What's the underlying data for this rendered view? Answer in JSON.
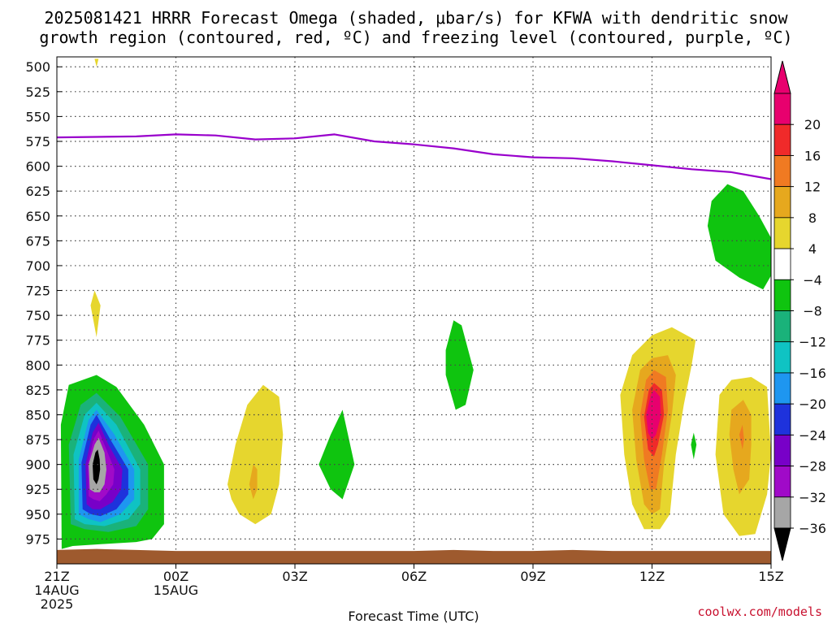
{
  "title": {
    "line1": "2025081421 HRRR Forecast Omega (shaded, μbar/s) for KFWA with dendritic snow",
    "line2": "growth region (contoured, red, ºC) and freezing level (contoured, purple, ºC)"
  },
  "credit": "coolwx.com/models",
  "chart_data": {
    "type": "heatmap",
    "title": "2025081421 HRRR Forecast Omega (shaded, μbar/s) for KFWA with dendritic snow growth region (contoured, red, ºC) and freezing level (contoured, purple, ºC)",
    "xlabel": "Forecast Time (UTC)",
    "ylabel": "",
    "x_range_hours": [
      0,
      18
    ],
    "y_range_hPa": [
      490,
      1000
    ],
    "y_ticks": [
      500,
      525,
      550,
      575,
      600,
      625,
      650,
      675,
      700,
      725,
      750,
      775,
      800,
      825,
      850,
      875,
      900,
      925,
      950,
      975
    ],
    "x_ticks": [
      {
        "h": 0,
        "lines": [
          "21Z",
          "14AUG",
          "2025"
        ]
      },
      {
        "h": 3,
        "lines": [
          "00Z",
          "15AUG"
        ]
      },
      {
        "h": 6,
        "lines": [
          "03Z"
        ]
      },
      {
        "h": 9,
        "lines": [
          "06Z"
        ]
      },
      {
        "h": 12,
        "lines": [
          "09Z"
        ]
      },
      {
        "h": 15,
        "lines": [
          "12Z"
        ]
      },
      {
        "h": 18,
        "lines": [
          "15Z"
        ]
      }
    ],
    "colorbar": {
      "labels": [
        "20",
        "16",
        "12",
        "8",
        "4",
        "−4",
        "−8",
        "−12",
        "−16",
        "−20",
        "−24",
        "−28",
        "−32",
        "−36"
      ],
      "colors": [
        "#e8006e",
        "#f02a2a",
        "#f07a22",
        "#e6a81e",
        "#e6d62e",
        "#ffffff",
        "#0fc40f",
        "#1ab27a",
        "#0fc3c3",
        "#1e96f0",
        "#1e32dc",
        "#7800c8",
        "#a00ac8",
        "#a6a6a6"
      ],
      "top_arrow": "#e8006e",
      "bottom_arrow": "#000000"
    },
    "freezing_level": {
      "color": "#9900cc",
      "points": [
        [
          0,
          571
        ],
        [
          1,
          570.5
        ],
        [
          2,
          570
        ],
        [
          3,
          568
        ],
        [
          4,
          569
        ],
        [
          5,
          573
        ],
        [
          6,
          572
        ],
        [
          7,
          568
        ],
        [
          8,
          575
        ],
        [
          9,
          578
        ],
        [
          10,
          582
        ],
        [
          11,
          588
        ],
        [
          12,
          591
        ],
        [
          13,
          592
        ],
        [
          14,
          595
        ],
        [
          15,
          599
        ],
        [
          16,
          603
        ],
        [
          17,
          606
        ],
        [
          18,
          613
        ]
      ]
    },
    "surface": {
      "color": "#9e5a2e",
      "points": [
        [
          0,
          986
        ],
        [
          1,
          985
        ],
        [
          2,
          986
        ],
        [
          3,
          987
        ],
        [
          4,
          987
        ],
        [
          5,
          987
        ],
        [
          6,
          987
        ],
        [
          7,
          987
        ],
        [
          8,
          987
        ],
        [
          9,
          987
        ],
        [
          10,
          986
        ],
        [
          11,
          987
        ],
        [
          12,
          987
        ],
        [
          13,
          986
        ],
        [
          14,
          987
        ],
        [
          15,
          987
        ],
        [
          16,
          987
        ],
        [
          17,
          987
        ],
        [
          18,
          987
        ]
      ]
    },
    "features": [
      {
        "color": "#0fc40f",
        "points": [
          [
            0.12,
            985
          ],
          [
            0.1,
            860
          ],
          [
            0.3,
            820
          ],
          [
            1,
            810
          ],
          [
            1.5,
            822
          ],
          [
            2.2,
            860
          ],
          [
            2.7,
            900
          ],
          [
            2.7,
            960
          ],
          [
            2.4,
            975
          ],
          [
            2,
            978
          ],
          [
            1.2,
            980
          ],
          [
            0.4,
            982
          ]
        ]
      },
      {
        "color": "#1ab27a",
        "points": [
          [
            0.35,
            960
          ],
          [
            0.3,
            880
          ],
          [
            0.6,
            840
          ],
          [
            1,
            828
          ],
          [
            1.6,
            852
          ],
          [
            2.3,
            900
          ],
          [
            2.3,
            945
          ],
          [
            2,
            962
          ],
          [
            1.3,
            968
          ],
          [
            0.7,
            965
          ]
        ]
      },
      {
        "color": "#0fc3c3",
        "points": [
          [
            0.45,
            955
          ],
          [
            0.42,
            890
          ],
          [
            0.7,
            850
          ],
          [
            1,
            838
          ],
          [
            1.5,
            860
          ],
          [
            2.1,
            905
          ],
          [
            2.1,
            940
          ],
          [
            1.8,
            955
          ],
          [
            1.2,
            962
          ],
          [
            0.7,
            960
          ]
        ]
      },
      {
        "color": "#1e96f0",
        "points": [
          [
            0.55,
            950
          ],
          [
            0.55,
            895
          ],
          [
            0.8,
            855
          ],
          [
            1,
            845
          ],
          [
            1.45,
            870
          ],
          [
            1.95,
            905
          ],
          [
            1.95,
            935
          ],
          [
            1.6,
            950
          ],
          [
            1.1,
            958
          ],
          [
            0.8,
            955
          ]
        ]
      },
      {
        "color": "#1e32dc",
        "points": [
          [
            0.65,
            945
          ],
          [
            0.62,
            898
          ],
          [
            0.85,
            860
          ],
          [
            1,
            850
          ],
          [
            1.35,
            875
          ],
          [
            1.8,
            905
          ],
          [
            1.8,
            930
          ],
          [
            1.5,
            945
          ],
          [
            1.1,
            952
          ],
          [
            0.85,
            950
          ]
        ]
      },
      {
        "color": "#7800c8",
        "points": [
          [
            0.75,
            940
          ],
          [
            0.72,
            900
          ],
          [
            0.9,
            868
          ],
          [
            1.05,
            858
          ],
          [
            1.3,
            880
          ],
          [
            1.65,
            905
          ],
          [
            1.62,
            925
          ],
          [
            1.4,
            938
          ],
          [
            1.1,
            945
          ],
          [
            0.9,
            945
          ]
        ]
      },
      {
        "color": "#a00ac8",
        "points": [
          [
            0.8,
            932
          ],
          [
            0.78,
            900
          ],
          [
            0.92,
            875
          ],
          [
            1.05,
            866
          ],
          [
            1.25,
            885
          ],
          [
            1.45,
            905
          ],
          [
            1.42,
            920
          ],
          [
            1.25,
            930
          ],
          [
            1.08,
            937
          ],
          [
            0.92,
            935
          ]
        ]
      },
      {
        "color": "#a6a6a6",
        "points": [
          [
            0.83,
            925
          ],
          [
            0.8,
            900
          ],
          [
            0.95,
            880
          ],
          [
            1.05,
            873
          ],
          [
            1.2,
            888
          ],
          [
            1.25,
            905
          ],
          [
            1.2,
            920
          ],
          [
            1.08,
            928
          ],
          [
            0.95,
            928
          ]
        ]
      },
      {
        "color": "#000000",
        "points": [
          [
            0.92,
            915
          ],
          [
            0.9,
            900
          ],
          [
            0.97,
            888
          ],
          [
            1.03,
            885
          ],
          [
            1.08,
            895
          ],
          [
            1.09,
            905
          ],
          [
            1.05,
            915
          ],
          [
            1,
            920
          ]
        ]
      },
      {
        "color": "#e6d62e",
        "points": [
          [
            0.95,
            725
          ],
          [
            1.1,
            740
          ],
          [
            1.0,
            772
          ],
          [
            0.85,
            740
          ]
        ]
      },
      {
        "color": "#e6d62e",
        "points": [
          [
            0.95,
            492
          ],
          [
            1.05,
            492
          ],
          [
            1.0,
            500
          ]
        ]
      },
      {
        "color": "#e6d62e",
        "points": [
          [
            4.3,
            920
          ],
          [
            4.5,
            880
          ],
          [
            4.8,
            840
          ],
          [
            5.2,
            820
          ],
          [
            5.6,
            832
          ],
          [
            5.7,
            870
          ],
          [
            5.6,
            920
          ],
          [
            5.4,
            950
          ],
          [
            5.0,
            960
          ],
          [
            4.6,
            950
          ],
          [
            4.4,
            935
          ]
        ]
      },
      {
        "color": "#e6a81e",
        "points": [
          [
            4.85,
            920
          ],
          [
            4.95,
            900
          ],
          [
            5.05,
            905
          ],
          [
            5.05,
            925
          ],
          [
            4.95,
            935
          ]
        ]
      },
      {
        "color": "#0fc40f",
        "points": [
          [
            6.6,
            900
          ],
          [
            6.9,
            870
          ],
          [
            7.2,
            845
          ],
          [
            7.5,
            900
          ],
          [
            7.2,
            935
          ],
          [
            6.9,
            925
          ]
        ]
      },
      {
        "color": "#0fc40f",
        "points": [
          [
            9.8,
            785
          ],
          [
            10.0,
            755
          ],
          [
            10.2,
            760
          ],
          [
            10.5,
            805
          ],
          [
            10.3,
            840
          ],
          [
            10.05,
            845
          ],
          [
            9.8,
            810
          ]
        ]
      },
      {
        "color": "#e6d62e",
        "points": [
          [
            14.2,
            830
          ],
          [
            14.5,
            790
          ],
          [
            15,
            770
          ],
          [
            15.5,
            762
          ],
          [
            16.1,
            775
          ],
          [
            16,
            800
          ],
          [
            15.8,
            840
          ],
          [
            15.6,
            890
          ],
          [
            15.45,
            950
          ],
          [
            15.2,
            965
          ],
          [
            14.8,
            965
          ],
          [
            14.5,
            940
          ],
          [
            14.3,
            890
          ]
        ]
      },
      {
        "color": "#e6a81e",
        "points": [
          [
            14.5,
            845
          ],
          [
            14.7,
            805
          ],
          [
            15,
            793
          ],
          [
            15.4,
            790
          ],
          [
            15.6,
            810
          ],
          [
            15.5,
            850
          ],
          [
            15.3,
            900
          ],
          [
            15.2,
            945
          ],
          [
            15,
            950
          ],
          [
            14.8,
            940
          ],
          [
            14.6,
            895
          ]
        ]
      },
      {
        "color": "#f07a22",
        "points": [
          [
            14.7,
            850
          ],
          [
            14.85,
            815
          ],
          [
            15.05,
            805
          ],
          [
            15.35,
            812
          ],
          [
            15.4,
            845
          ],
          [
            15.25,
            890
          ],
          [
            15.1,
            925
          ],
          [
            14.95,
            925
          ],
          [
            14.8,
            895
          ]
        ]
      },
      {
        "color": "#f02a2a",
        "points": [
          [
            14.8,
            852
          ],
          [
            14.92,
            825
          ],
          [
            15.05,
            818
          ],
          [
            15.25,
            825
          ],
          [
            15.3,
            850
          ],
          [
            15.15,
            880
          ],
          [
            15.05,
            892
          ],
          [
            14.9,
            885
          ]
        ]
      },
      {
        "color": "#e8006e",
        "points": [
          [
            14.85,
            850
          ],
          [
            14.97,
            830
          ],
          [
            15.05,
            825
          ],
          [
            15.2,
            832
          ],
          [
            15.22,
            852
          ],
          [
            15.1,
            870
          ],
          [
            15.0,
            875
          ],
          [
            14.9,
            868
          ]
        ]
      },
      {
        "color": "#e6d62e",
        "points": [
          [
            16.7,
            830
          ],
          [
            17.0,
            815
          ],
          [
            17.5,
            812
          ],
          [
            17.9,
            822
          ],
          [
            18,
            890
          ],
          [
            17.9,
            930
          ],
          [
            17.6,
            970
          ],
          [
            17.2,
            972
          ],
          [
            16.8,
            950
          ],
          [
            16.6,
            890
          ]
        ]
      },
      {
        "color": "#e6a81e",
        "points": [
          [
            17,
            845
          ],
          [
            17.3,
            835
          ],
          [
            17.5,
            850
          ],
          [
            17.5,
            880
          ],
          [
            17.45,
            915
          ],
          [
            17.2,
            930
          ],
          [
            17.05,
            905
          ],
          [
            16.95,
            870
          ]
        ]
      },
      {
        "color": "#f07a22",
        "points": [
          [
            17.2,
            870
          ],
          [
            17.28,
            860
          ],
          [
            17.32,
            875
          ],
          [
            17.28,
            885
          ]
        ]
      },
      {
        "color": "#0fc40f",
        "points": [
          [
            16.5,
            635
          ],
          [
            16.9,
            618
          ],
          [
            17.3,
            625
          ],
          [
            17.7,
            650
          ],
          [
            18,
            672
          ],
          [
            18,
            710
          ],
          [
            17.8,
            724
          ],
          [
            17.2,
            712
          ],
          [
            16.6,
            695
          ],
          [
            16.4,
            660
          ]
        ]
      },
      {
        "color": "#0fc40f",
        "points": [
          [
            16.05,
            868
          ],
          [
            16.12,
            880
          ],
          [
            16.05,
            895
          ],
          [
            15.98,
            880
          ]
        ]
      }
    ]
  }
}
